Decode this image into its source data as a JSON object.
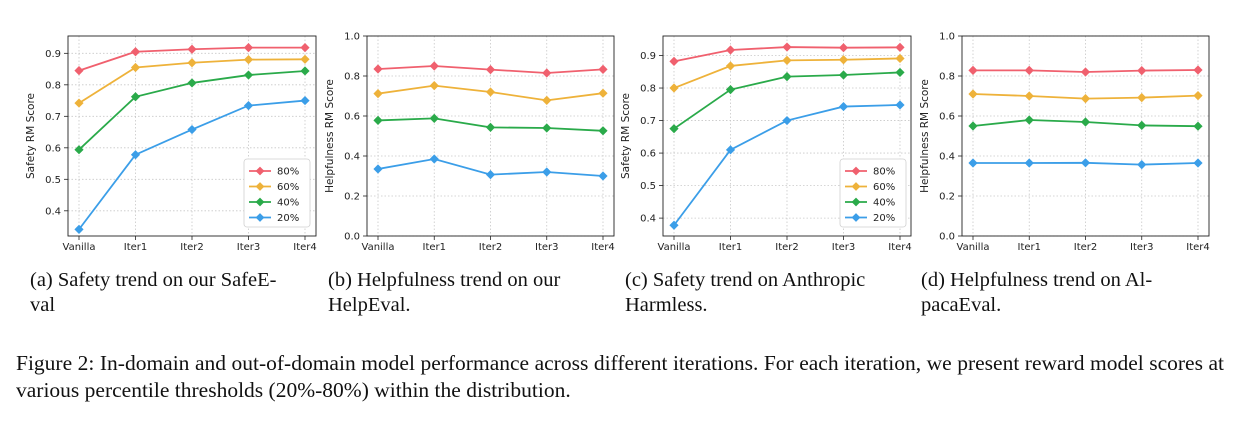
{
  "chart_data": [
    {
      "type": "line",
      "ylabel": "Safety RM Score",
      "categories": [
        "Vanilla",
        "Iter1",
        "Iter2",
        "Iter3",
        "Iter4"
      ],
      "ylim": [
        0.32,
        0.955
      ],
      "yticks": [
        "0.4",
        "0.5",
        "0.6",
        "0.7",
        "0.8",
        "0.9"
      ],
      "ytick_values": [
        0.4,
        0.5,
        0.6,
        0.7,
        0.8,
        0.9
      ],
      "grid": true,
      "legend_placement": "lower-right",
      "series": [
        {
          "name": "80%",
          "color": "#f0606e",
          "values": [
            0.845,
            0.905,
            0.913,
            0.918,
            0.918
          ]
        },
        {
          "name": "60%",
          "color": "#eeb23a",
          "values": [
            0.742,
            0.855,
            0.87,
            0.88,
            0.881
          ]
        },
        {
          "name": "40%",
          "color": "#2aaa4a",
          "values": [
            0.594,
            0.762,
            0.806,
            0.831,
            0.844
          ]
        },
        {
          "name": "20%",
          "color": "#3b9ee8",
          "values": [
            0.341,
            0.578,
            0.658,
            0.734,
            0.75
          ]
        }
      ],
      "caption": [
        "(a) Safety trend on our SafeE-",
        "val"
      ]
    },
    {
      "type": "line",
      "ylabel": "Helpfulness RM Score",
      "categories": [
        "Vanilla",
        "Iter1",
        "Iter2",
        "Iter3",
        "Iter4"
      ],
      "ylim": [
        0.0,
        1.0
      ],
      "yticks": [
        "0.0",
        "0.2",
        "0.4",
        "0.6",
        "0.8",
        "1.0"
      ],
      "ytick_values": [
        0.0,
        0.2,
        0.4,
        0.6,
        0.8,
        1.0
      ],
      "grid": true,
      "series": [
        {
          "name": "80%",
          "color": "#f0606e",
          "values": [
            0.835,
            0.85,
            0.832,
            0.815,
            0.833
          ]
        },
        {
          "name": "60%",
          "color": "#eeb23a",
          "values": [
            0.712,
            0.752,
            0.72,
            0.678,
            0.714
          ]
        },
        {
          "name": "40%",
          "color": "#2aaa4a",
          "values": [
            0.578,
            0.588,
            0.543,
            0.54,
            0.526
          ]
        },
        {
          "name": "20%",
          "color": "#3b9ee8",
          "values": [
            0.335,
            0.385,
            0.307,
            0.32,
            0.3
          ]
        }
      ],
      "caption": [
        "(b) Helpfulness trend on our",
        "HelpEval."
      ]
    },
    {
      "type": "line",
      "ylabel": "Safety RM Score",
      "categories": [
        "Vanilla",
        "Iter1",
        "Iter2",
        "Iter3",
        "Iter4"
      ],
      "ylim": [
        0.345,
        0.96
      ],
      "yticks": [
        "0.4",
        "0.5",
        "0.6",
        "0.7",
        "0.8",
        "0.9"
      ],
      "ytick_values": [
        0.4,
        0.5,
        0.6,
        0.7,
        0.8,
        0.9
      ],
      "grid": true,
      "legend_placement": "lower-right",
      "series": [
        {
          "name": "80%",
          "color": "#f0606e",
          "values": [
            0.882,
            0.917,
            0.926,
            0.924,
            0.925
          ]
        },
        {
          "name": "60%",
          "color": "#eeb23a",
          "values": [
            0.8,
            0.868,
            0.885,
            0.887,
            0.891
          ]
        },
        {
          "name": "40%",
          "color": "#2aaa4a",
          "values": [
            0.675,
            0.795,
            0.835,
            0.84,
            0.848
          ]
        },
        {
          "name": "20%",
          "color": "#3b9ee8",
          "values": [
            0.378,
            0.61,
            0.7,
            0.743,
            0.748
          ]
        }
      ],
      "caption": [
        "(c) Safety trend on Anthropic",
        "Harmless."
      ]
    },
    {
      "type": "line",
      "ylabel": "Helpfulness RM Score",
      "categories": [
        "Vanilla",
        "Iter1",
        "Iter2",
        "Iter3",
        "Iter4"
      ],
      "ylim": [
        0.0,
        1.0
      ],
      "yticks": [
        "0.0",
        "0.2",
        "0.4",
        "0.6",
        "0.8",
        "1.0"
      ],
      "ytick_values": [
        0.0,
        0.2,
        0.4,
        0.6,
        0.8,
        1.0
      ],
      "grid": true,
      "series": [
        {
          "name": "80%",
          "color": "#f0606e",
          "values": [
            0.828,
            0.828,
            0.82,
            0.827,
            0.83
          ]
        },
        {
          "name": "60%",
          "color": "#eeb23a",
          "values": [
            0.71,
            0.7,
            0.687,
            0.692,
            0.702
          ]
        },
        {
          "name": "40%",
          "color": "#2aaa4a",
          "values": [
            0.55,
            0.58,
            0.57,
            0.553,
            0.549
          ]
        },
        {
          "name": "20%",
          "color": "#3b9ee8",
          "values": [
            0.365,
            0.365,
            0.366,
            0.357,
            0.365
          ]
        }
      ],
      "caption": [
        "(d) Helpfulness trend on Al-",
        "pacaEval."
      ]
    }
  ],
  "figure_caption": "Figure 2: In-domain and out-of-domain model performance across different iterations. For each iteration, we present reward model scores at various percentile thresholds (20%-80%) within the distribution."
}
